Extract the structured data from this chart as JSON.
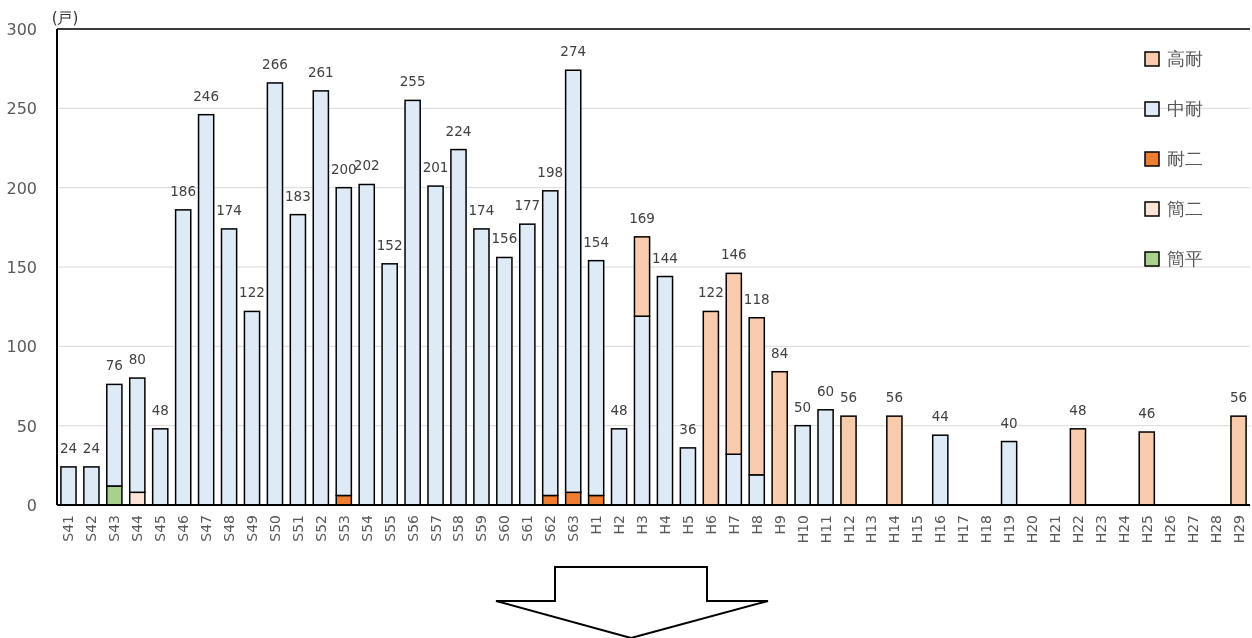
{
  "chart_data": {
    "type": "bar",
    "stacked": true,
    "ylabel": "(戸)",
    "categories": [
      "S41",
      "S42",
      "S43",
      "S44",
      "S45",
      "S46",
      "S47",
      "S48",
      "S49",
      "S50",
      "S51",
      "S52",
      "S53",
      "S54",
      "S55",
      "S56",
      "S57",
      "S58",
      "S59",
      "S60",
      "S61",
      "S62",
      "S63",
      "H1",
      "H2",
      "H3",
      "H4",
      "H5",
      "H6",
      "H7",
      "H8",
      "H9",
      "H10",
      "H11",
      "H12",
      "H13",
      "H14",
      "H15",
      "H16",
      "H17",
      "H18",
      "H19",
      "H20",
      "H21",
      "H22",
      "H23",
      "H24",
      "H25",
      "H26",
      "H27",
      "H28",
      "H29"
    ],
    "series": [
      {
        "name": "簡平",
        "color": "#a9d18e",
        "values": [
          null,
          null,
          12,
          null,
          null,
          null,
          null,
          null,
          null,
          null,
          null,
          null,
          null,
          null,
          null,
          null,
          null,
          null,
          null,
          null,
          null,
          null,
          null,
          null,
          null,
          null,
          null,
          null,
          null,
          null,
          null,
          null,
          null,
          null,
          null,
          null,
          null,
          null,
          null,
          null,
          null,
          null,
          null,
          null,
          null,
          null,
          null,
          null,
          null,
          null,
          null,
          null
        ]
      },
      {
        "name": "簡二",
        "color": "#fce4d6",
        "values": [
          null,
          null,
          null,
          8,
          null,
          null,
          null,
          null,
          null,
          null,
          null,
          null,
          null,
          null,
          null,
          null,
          null,
          null,
          null,
          null,
          null,
          null,
          null,
          null,
          null,
          null,
          null,
          null,
          null,
          null,
          null,
          null,
          null,
          null,
          null,
          null,
          null,
          null,
          null,
          null,
          null,
          null,
          null,
          null,
          null,
          null,
          null,
          null,
          null,
          null,
          null,
          null
        ]
      },
      {
        "name": "耐二",
        "color": "#ed7d31",
        "values": [
          null,
          null,
          null,
          null,
          null,
          null,
          null,
          null,
          null,
          null,
          null,
          null,
          6,
          null,
          null,
          null,
          null,
          null,
          null,
          null,
          null,
          6,
          8,
          6,
          null,
          null,
          null,
          null,
          null,
          null,
          null,
          null,
          null,
          null,
          null,
          null,
          null,
          null,
          null,
          null,
          null,
          null,
          null,
          null,
          null,
          null,
          null,
          null,
          null,
          null,
          null,
          null
        ]
      },
      {
        "name": "中耐",
        "color": "#deebf7",
        "values": [
          24,
          24,
          64,
          72,
          48,
          186,
          246,
          174,
          122,
          266,
          183,
          261,
          194,
          202,
          152,
          255,
          201,
          224,
          174,
          156,
          177,
          192,
          266,
          148,
          48,
          119,
          144,
          36,
          null,
          32,
          19,
          null,
          50,
          60,
          null,
          null,
          null,
          null,
          44,
          null,
          null,
          40,
          null,
          null,
          null,
          null,
          null,
          null,
          null,
          null,
          null,
          null
        ]
      },
      {
        "name": "高耐",
        "color": "#f8cbad",
        "values": [
          null,
          null,
          null,
          null,
          null,
          null,
          null,
          null,
          null,
          null,
          null,
          null,
          null,
          null,
          null,
          null,
          null,
          null,
          null,
          null,
          null,
          null,
          null,
          null,
          null,
          50,
          null,
          null,
          122,
          114,
          99,
          84,
          null,
          null,
          56,
          null,
          56,
          null,
          null,
          null,
          null,
          null,
          null,
          null,
          48,
          null,
          null,
          46,
          null,
          null,
          null,
          56
        ]
      }
    ],
    "totals": [
      "24",
      "24",
      "76",
      "80",
      "48",
      "186",
      "246",
      "174",
      "122",
      "266",
      "183",
      "261",
      "200",
      "202",
      "152",
      "255",
      "201",
      "224",
      "174",
      "156",
      "177",
      "198",
      "274",
      "154",
      "48",
      "169",
      "144",
      "36",
      "122",
      "146",
      "118",
      "84",
      "50",
      "60",
      "56",
      null,
      "56",
      null,
      "44",
      null,
      null,
      "40",
      null,
      null,
      "48",
      null,
      null,
      "46",
      null,
      null,
      null,
      "56"
    ],
    "ylim": [
      0,
      300
    ],
    "yticks": [
      0,
      50,
      100,
      150,
      200,
      250,
      300
    ],
    "grid": "y",
    "legend": "top right"
  }
}
